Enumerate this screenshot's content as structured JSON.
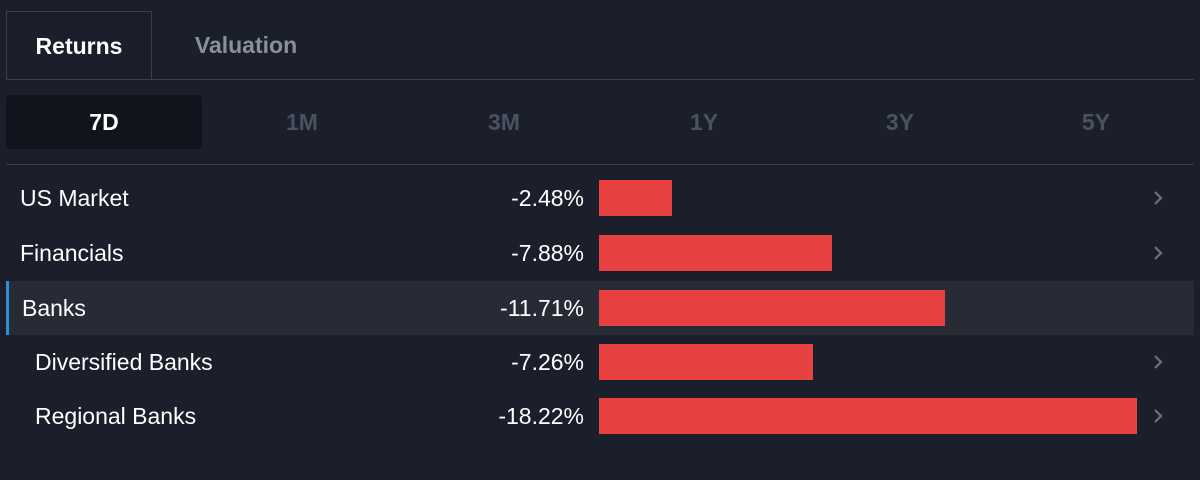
{
  "tabs": [
    {
      "label": "Returns",
      "active": true
    },
    {
      "label": "Valuation",
      "active": false
    }
  ],
  "periods": [
    {
      "label": "7D",
      "active": true
    },
    {
      "label": "1M",
      "active": false
    },
    {
      "label": "3M",
      "active": false
    },
    {
      "label": "1Y",
      "active": false
    },
    {
      "label": "3Y",
      "active": false
    },
    {
      "label": "5Y",
      "active": false
    }
  ],
  "rows": [
    {
      "label": "US Market",
      "value": "-2.48%",
      "return": -2.48,
      "chevron": true,
      "highlight": false,
      "indent": false
    },
    {
      "label": "Financials",
      "value": "-7.88%",
      "return": -7.88,
      "chevron": true,
      "highlight": false,
      "indent": false
    },
    {
      "label": "Banks",
      "value": "-11.71%",
      "return": -11.71,
      "chevron": false,
      "highlight": true,
      "indent": false
    },
    {
      "label": "Diversified Banks",
      "value": "-7.26%",
      "return": -7.26,
      "chevron": true,
      "highlight": false,
      "indent": true
    },
    {
      "label": "Regional Banks",
      "value": "-18.22%",
      "return": -18.22,
      "chevron": true,
      "highlight": false,
      "indent": true
    }
  ],
  "colors": {
    "background": "#1b1f2b",
    "negative_bar": "#e84142",
    "highlight_row": "#262b36",
    "accent": "#2d8fd5"
  },
  "icons": {
    "row_action": "chevron-right-icon"
  }
}
